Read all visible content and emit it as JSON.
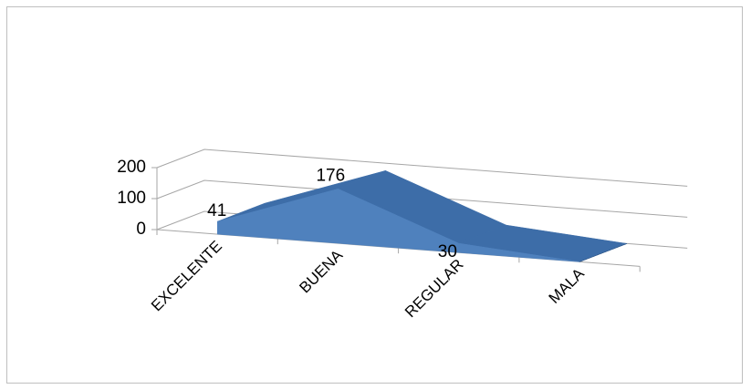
{
  "chart_data": {
    "type": "area",
    "style": "3d-area",
    "title": "",
    "xlabel": "",
    "ylabel": "",
    "categories": [
      "EXCELENTE",
      "BUENA",
      "REGULAR",
      "MALA"
    ],
    "series": [
      {
        "values": [
          41,
          176,
          30,
          0
        ]
      }
    ],
    "data_labels": [
      "41",
      "176",
      "30"
    ],
    "ylim": [
      0,
      200
    ],
    "yticks": [
      0,
      100,
      200
    ],
    "grid": true,
    "legend": "none",
    "colors": {
      "area_front": "#4f81bd",
      "area_top": "#3d6da8",
      "area_side": "#2f5686",
      "gridline": "#a6a6a6",
      "border": "#bfbfbf"
    }
  }
}
